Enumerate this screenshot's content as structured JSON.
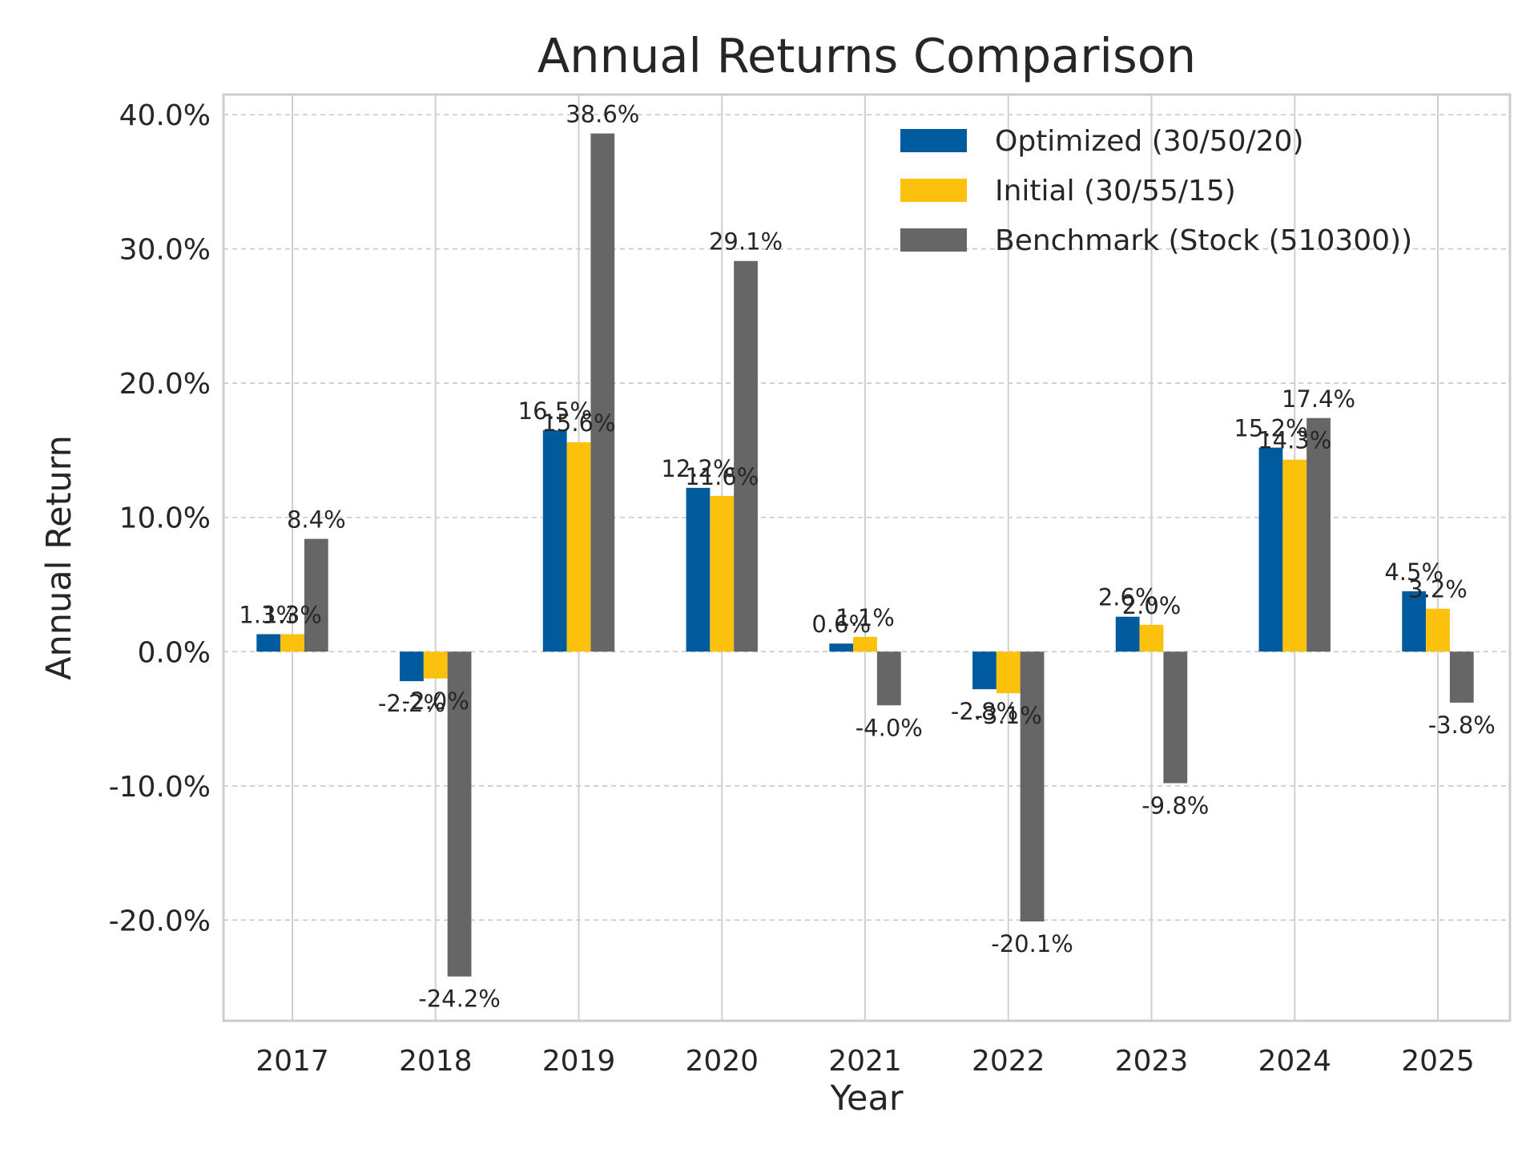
{
  "chart_data": {
    "type": "bar",
    "title": "Annual Returns Comparison",
    "xlabel": "Year",
    "ylabel": "Annual Return",
    "categories": [
      "2017",
      "2018",
      "2019",
      "2020",
      "2021",
      "2022",
      "2023",
      "2024",
      "2025"
    ],
    "series": [
      {
        "name": "Optimized (30/50/20)",
        "color": "#005a9e",
        "values": [
          1.3,
          -2.2,
          16.5,
          12.2,
          0.6,
          -2.8,
          2.6,
          15.2,
          4.5
        ],
        "labels": [
          "1.3%",
          "-2.2%",
          "16.5%",
          "12.2%",
          "0.6%",
          "-2.8%",
          "2.6%",
          "15.2%",
          "4.5%"
        ]
      },
      {
        "name": "Initial (30/55/15)",
        "color": "#fcc10c",
        "values": [
          1.3,
          -2.0,
          15.6,
          11.6,
          1.1,
          -3.1,
          2.0,
          14.3,
          3.2
        ],
        "labels": [
          "1.3%",
          "-2.0%",
          "15.6%",
          "11.6%",
          "1.1%",
          "-3.1%",
          "2.0%",
          "14.3%",
          "3.2%"
        ]
      },
      {
        "name": "Benchmark (Stock (510300))",
        "color": "#666666",
        "values": [
          8.4,
          -24.2,
          38.6,
          29.1,
          -4.0,
          -20.1,
          -9.8,
          17.4,
          -3.8
        ],
        "labels": [
          "8.4%",
          "-24.2%",
          "38.6%",
          "29.1%",
          "-4.0%",
          "-20.1%",
          "-9.8%",
          "17.4%",
          "-3.8%"
        ]
      }
    ],
    "ylim": [
      -27.5,
      41.5
    ],
    "yticks": [
      -20,
      -10,
      0,
      10,
      20,
      30,
      40
    ],
    "ytick_labels": [
      "-20.0%",
      "-10.0%",
      "0.0%",
      "10.0%",
      "20.0%",
      "30.0%",
      "40.0%"
    ],
    "grid": true,
    "legend_position": "top-right"
  }
}
